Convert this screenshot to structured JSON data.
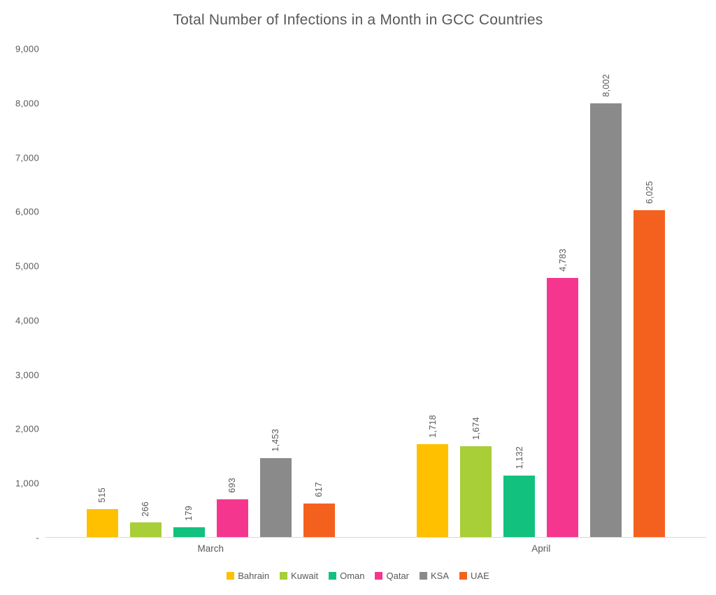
{
  "title": "Total Number of Infections in a Month in GCC Countries",
  "chart_data": {
    "type": "bar",
    "title": "Total Number of Infections in a Month in GCC Countries",
    "categories": [
      "March",
      "April"
    ],
    "series": [
      {
        "name": "Bahrain",
        "color": "#FFC000",
        "values": [
          515,
          1718
        ]
      },
      {
        "name": "Kuwait",
        "color": "#A8CE38",
        "values": [
          266,
          1674
        ]
      },
      {
        "name": "Oman",
        "color": "#12C17E",
        "values": [
          179,
          1132
        ]
      },
      {
        "name": "Qatar",
        "color": "#F5368F",
        "values": [
          693,
          4783
        ]
      },
      {
        "name": "KSA",
        "color": "#8A8A8A",
        "values": [
          1453,
          8002
        ]
      },
      {
        "name": "UAE",
        "color": "#F4611E",
        "values": [
          617,
          6025
        ]
      }
    ],
    "data_labels": [
      [
        "515",
        "266",
        "179",
        "693",
        "1,453",
        "617"
      ],
      [
        "1,718",
        "1,674",
        "1,132",
        "4,783",
        "8,002",
        "6,025"
      ]
    ],
    "ylim": [
      0,
      9000
    ],
    "ytick_labels": [
      "-",
      "1,000",
      "2,000",
      "3,000",
      "4,000",
      "5,000",
      "6,000",
      "7,000",
      "8,000",
      "9,000"
    ],
    "xlabel": "",
    "ylabel": "",
    "grid": false,
    "legend_position": "bottom",
    "text_color": "#595959"
  }
}
